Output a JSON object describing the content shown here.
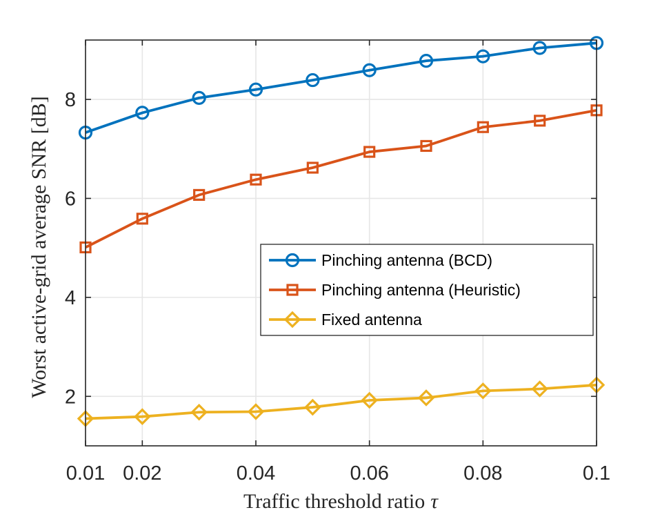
{
  "chart_data": {
    "type": "line",
    "title": "",
    "xlabel": "Traffic threshold ratio",
    "xlabel_symbol": "τ",
    "ylabel": "Worst active-grid average SNR [dB]",
    "xlim": [
      0.01,
      0.1
    ],
    "ylim": [
      1.0,
      9.2
    ],
    "xticks": [
      0.01,
      0.02,
      0.04,
      0.06,
      0.08,
      0.1
    ],
    "xtick_labels": [
      "0.01",
      "0.02",
      "0.04",
      "0.06",
      "0.08",
      "0.1"
    ],
    "yticks": [
      2,
      4,
      6,
      8
    ],
    "ytick_labels": [
      "2",
      "4",
      "6",
      "8"
    ],
    "grid": true,
    "legend_position": "center-right",
    "x": [
      0.01,
      0.02,
      0.03,
      0.04,
      0.05,
      0.06,
      0.07,
      0.08,
      0.09,
      0.1
    ],
    "series": [
      {
        "name": "Pinching antenna (BCD)",
        "color": "#0072BD",
        "marker": "circle",
        "values": [
          7.33,
          7.73,
          8.03,
          8.2,
          8.39,
          8.59,
          8.78,
          8.87,
          9.04,
          9.14
        ]
      },
      {
        "name": "Pinching antenna (Heuristic)",
        "color": "#D95319",
        "marker": "square",
        "values": [
          5.01,
          5.59,
          6.07,
          6.38,
          6.62,
          6.94,
          7.06,
          7.44,
          7.57,
          7.78
        ]
      },
      {
        "name": "Fixed antenna",
        "color": "#EDB120",
        "marker": "diamond",
        "values": [
          1.55,
          1.59,
          1.68,
          1.69,
          1.78,
          1.92,
          1.97,
          2.11,
          2.15,
          2.23
        ]
      }
    ]
  }
}
